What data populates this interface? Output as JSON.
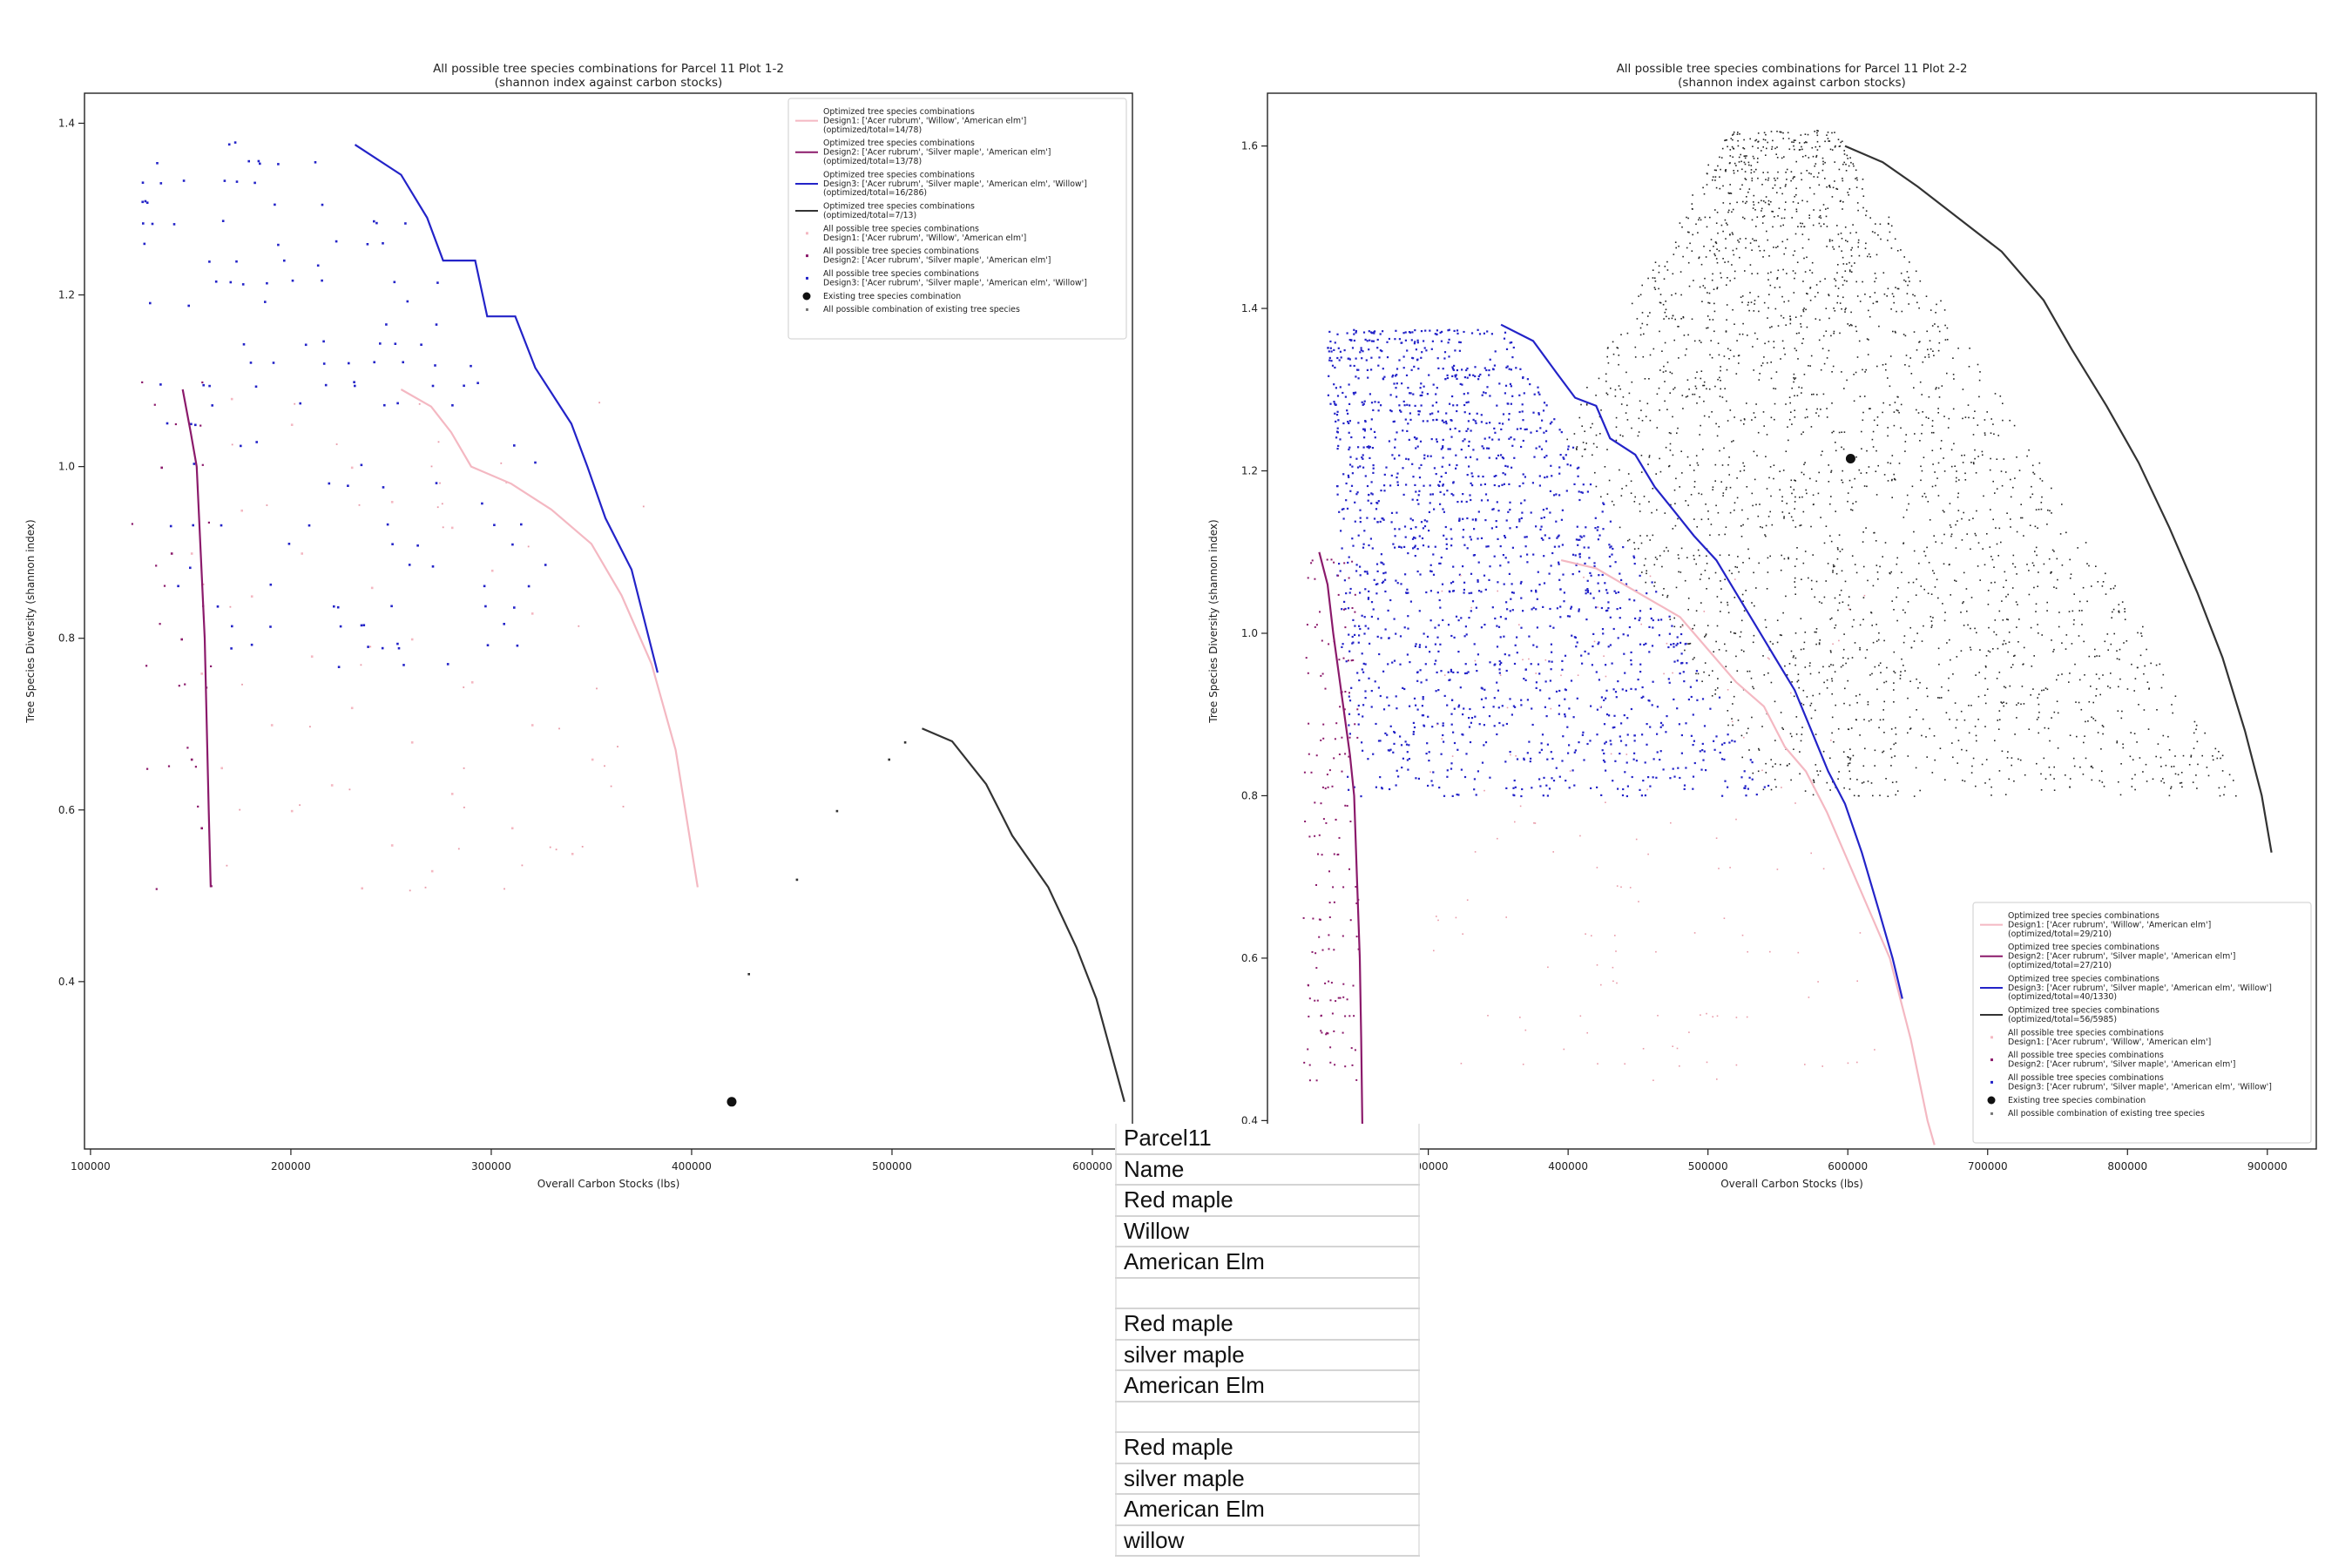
{
  "chart_data": [
    {
      "type": "scatter",
      "title": "All possible tree species combinations for Parcel 11 Plot 1-2",
      "subtitle": "(shannon index against carbon stocks)",
      "xlabel": "Overall Carbon Stocks (lbs)",
      "ylabel": "Tree Species Diversity (shannon index)",
      "xlim": [
        97000,
        620000
      ],
      "ylim": [
        0.205,
        1.435
      ],
      "xticks": [
        100000,
        200000,
        300000,
        400000,
        500000,
        600000
      ],
      "yticks": [
        0.4,
        0.6,
        0.8,
        1.0,
        1.2,
        1.4
      ],
      "xticklabels": [
        "100000",
        "200000",
        "300000",
        "400000",
        "500000",
        "600000"
      ],
      "yticklabels": [
        "0.4",
        "0.6",
        "0.8",
        "1.0",
        "1.2",
        "1.4"
      ],
      "legend_position": "top-right",
      "grid": false,
      "legend": [
        {
          "kind": "line",
          "color": "#f4b8c2",
          "lines": [
            "Optimized tree species combinations",
            "Design1: ['Acer rubrum', 'Willow', 'American elm']",
            "(optimized/total=14/78)"
          ]
        },
        {
          "kind": "line",
          "color": "#8b1a6b",
          "lines": [
            "Optimized tree species combinations",
            "Design2: ['Acer rubrum', 'Silver maple', 'American elm']",
            "(optimized/total=13/78)"
          ]
        },
        {
          "kind": "line",
          "color": "#2323c8",
          "lines": [
            "Optimized tree species combinations",
            "Design3: ['Acer rubrum', 'Silver maple', 'American elm', 'Willow']",
            "(optimized/total=16/286)"
          ]
        },
        {
          "kind": "line",
          "color": "#333333",
          "lines": [
            "Optimized tree species combinations",
            "(optimized/total=7/13)"
          ]
        },
        {
          "kind": "dot",
          "color": "#f4b8c2",
          "lines": [
            "All possible tree species combinations",
            "Design1: ['Acer rubrum', 'Willow', 'American elm']"
          ]
        },
        {
          "kind": "dot",
          "color": "#8b1a6b",
          "lines": [
            "All possible tree species combinations",
            "Design2: ['Acer rubrum', 'Silver maple', 'American elm']"
          ]
        },
        {
          "kind": "dot",
          "color": "#2323c8",
          "lines": [
            "All possible tree species combinations",
            "Design3: ['Acer rubrum', 'Silver maple', 'American elm', 'Willow']"
          ]
        },
        {
          "kind": "big",
          "color": "#111111",
          "lines": [
            "Existing tree species combination"
          ]
        },
        {
          "kind": "dot",
          "color": "#777777",
          "lines": [
            "All possible combination of existing tree species"
          ]
        }
      ],
      "series": [
        {
          "color": "#f4b8c2",
          "line": [
            [
              255000,
              1.09
            ],
            [
              270000,
              1.07
            ],
            [
              280000,
              1.04
            ],
            [
              290000,
              1.0
            ],
            [
              310000,
              0.98
            ],
            [
              330000,
              0.95
            ],
            [
              350000,
              0.91
            ],
            [
              365000,
              0.85
            ],
            [
              380000,
              0.77
            ],
            [
              392000,
              0.67
            ],
            [
              403000,
              0.51
            ]
          ],
          "points": [
            [
              170000,
              1.08
            ],
            [
              200000,
              1.05
            ],
            [
              230000,
              1.0
            ],
            [
              250000,
              0.96
            ],
            [
              280000,
              0.93
            ],
            [
              300000,
              0.88
            ],
            [
              320000,
              0.83
            ],
            [
              205000,
              0.9
            ],
            [
              240000,
              0.86
            ],
            [
              260000,
              0.8
            ],
            [
              290000,
              0.75
            ],
            [
              320000,
              0.7
            ],
            [
              350000,
              0.66
            ],
            [
              180000,
              0.85
            ],
            [
              210000,
              0.78
            ],
            [
              230000,
              0.72
            ],
            [
              260000,
              0.68
            ],
            [
              280000,
              0.62
            ],
            [
              310000,
              0.58
            ],
            [
              340000,
              0.55
            ],
            [
              190000,
              0.7
            ],
            [
              220000,
              0.63
            ],
            [
              250000,
              0.56
            ],
            [
              175000,
              0.95
            ],
            [
              150000,
              0.9
            ],
            [
              155000,
              0.76
            ],
            [
              165000,
              0.65
            ],
            [
              200000,
              0.6
            ],
            [
              235000,
              0.51
            ],
            [
              270000,
              0.53
            ]
          ]
        },
        {
          "color": "#8b1a6b",
          "line": [
            [
              146000,
              1.09
            ],
            [
              150000,
              1.04
            ],
            [
              153000,
              1.0
            ],
            [
              155000,
              0.9
            ],
            [
              157000,
              0.8
            ],
            [
              158000,
              0.7
            ],
            [
              159000,
              0.6
            ],
            [
              160000,
              0.51
            ]
          ],
          "points": [
            [
              135000,
              1.0
            ],
            [
              140000,
              0.9
            ],
            [
              145000,
              0.8
            ],
            [
              150000,
              0.66
            ],
            [
              155000,
              0.58
            ]
          ]
        },
        {
          "color": "#2323c8",
          "line": [
            [
              232000,
              1.375
            ],
            [
              255000,
              1.34
            ],
            [
              268000,
              1.29
            ],
            [
              276000,
              1.24
            ],
            [
              292000,
              1.24
            ],
            [
              298000,
              1.175
            ],
            [
              312000,
              1.175
            ],
            [
              322000,
              1.115
            ],
            [
              340000,
              1.05
            ],
            [
              348000,
              1.0
            ],
            [
              357000,
              0.94
            ],
            [
              370000,
              0.88
            ],
            [
              383000,
              0.76
            ]
          ],
          "points": []
        },
        {
          "color": "#333333",
          "line": [
            [
              515000,
              0.695
            ],
            [
              530000,
              0.68
            ],
            [
              547000,
              0.63
            ],
            [
              560000,
              0.57
            ],
            [
              578000,
              0.51
            ],
            [
              592000,
              0.44
            ],
            [
              602000,
              0.38
            ],
            [
              616000,
              0.26
            ]
          ],
          "points": [
            [
              428000,
              0.41
            ],
            [
              452000,
              0.52
            ],
            [
              472000,
              0.6
            ],
            [
              498000,
              0.66
            ],
            [
              506000,
              0.68
            ]
          ]
        }
      ],
      "existing_point": [
        420000,
        0.26
      ]
    },
    {
      "type": "scatter",
      "title": "All possible tree species combinations for Parcel 11 Plot 2-2",
      "subtitle": "(shannon index against carbon stocks)",
      "xlabel": "Overall Carbon Stocks (lbs)",
      "ylabel": "Tree Species Diversity (shannon index)",
      "xlim": [
        185000,
        935000
      ],
      "ylim": [
        0.365,
        1.665
      ],
      "xticks": [
        300000,
        400000,
        500000,
        600000,
        700000,
        800000,
        900000
      ],
      "yticks": [
        0.4,
        0.6,
        0.8,
        1.0,
        1.2,
        1.4,
        1.6
      ],
      "xticklabels": [
        "300000",
        "400000",
        "500000",
        "600000",
        "700000",
        "800000",
        "900000"
      ],
      "yticklabels": [
        "0.4",
        "0.6",
        "0.8",
        "1.0",
        "1.2",
        "1.4",
        "1.6"
      ],
      "legend_position": "bottom-right",
      "grid": false,
      "legend": [
        {
          "kind": "line",
          "color": "#f4b8c2",
          "lines": [
            "Optimized tree species combinations",
            "Design1: ['Acer rubrum', 'Willow', 'American elm']",
            "(optimized/total=29/210)"
          ]
        },
        {
          "kind": "line",
          "color": "#8b1a6b",
          "lines": [
            "Optimized tree species combinations",
            "Design2: ['Acer rubrum', 'Silver maple', 'American elm']",
            "(optimized/total=27/210)"
          ]
        },
        {
          "kind": "line",
          "color": "#2323c8",
          "lines": [
            "Optimized tree species combinations",
            "Design3: ['Acer rubrum', 'Silver maple', 'American elm', 'Willow']",
            "(optimized/total=40/1330)"
          ]
        },
        {
          "kind": "line",
          "color": "#333333",
          "lines": [
            "Optimized tree species combinations",
            "(optimized/total=56/5985)"
          ]
        },
        {
          "kind": "dot",
          "color": "#f4b8c2",
          "lines": [
            "All possible tree species combinations",
            "Design1: ['Acer rubrum', 'Willow', 'American elm']"
          ]
        },
        {
          "kind": "dot",
          "color": "#8b1a6b",
          "lines": [
            "All possible tree species combinations",
            "Design2: ['Acer rubrum', 'Silver maple', 'American elm']"
          ]
        },
        {
          "kind": "dot",
          "color": "#2323c8",
          "lines": [
            "All possible tree species combinations",
            "Design3: ['Acer rubrum', 'Silver maple', 'American elm', 'Willow']"
          ]
        },
        {
          "kind": "big",
          "color": "#111111",
          "lines": [
            "Existing tree species combination"
          ]
        },
        {
          "kind": "dot",
          "color": "#777777",
          "lines": [
            "All possible combination of existing tree species"
          ]
        }
      ],
      "series": [
        {
          "color": "#f4b8c2",
          "line": [
            [
              395000,
              1.09
            ],
            [
              420000,
              1.08
            ],
            [
              450000,
              1.05
            ],
            [
              480000,
              1.02
            ],
            [
              500000,
              0.98
            ],
            [
              520000,
              0.94
            ],
            [
              540000,
              0.91
            ],
            [
              555000,
              0.86
            ],
            [
              570000,
              0.83
            ],
            [
              585000,
              0.78
            ],
            [
              600000,
              0.72
            ],
            [
              615000,
              0.66
            ],
            [
              630000,
              0.6
            ],
            [
              645000,
              0.5
            ],
            [
              657000,
              0.4
            ],
            [
              662000,
              0.37
            ]
          ],
          "points": []
        },
        {
          "color": "#8b1a6b",
          "line": [
            [
              222000,
              1.1
            ],
            [
              228000,
              1.06
            ],
            [
              232000,
              1.0
            ],
            [
              236000,
              0.95
            ],
            [
              240000,
              0.9
            ],
            [
              244000,
              0.85
            ],
            [
              247000,
              0.8
            ],
            [
              249000,
              0.7
            ],
            [
              251000,
              0.6
            ],
            [
              252000,
              0.5
            ],
            [
              253000,
              0.37
            ]
          ],
          "points": []
        },
        {
          "color": "#2323c8",
          "line": [
            [
              352000,
              1.38
            ],
            [
              375000,
              1.36
            ],
            [
              392000,
              1.32
            ],
            [
              405000,
              1.29
            ],
            [
              420000,
              1.28
            ],
            [
              430000,
              1.24
            ],
            [
              448000,
              1.22
            ],
            [
              462000,
              1.18
            ],
            [
              476000,
              1.15
            ],
            [
              490000,
              1.12
            ],
            [
              506000,
              1.09
            ],
            [
              520000,
              1.05
            ],
            [
              534000,
              1.01
            ],
            [
              548000,
              0.97
            ],
            [
              562000,
              0.93
            ],
            [
              574000,
              0.88
            ],
            [
              586000,
              0.83
            ],
            [
              598000,
              0.79
            ],
            [
              610000,
              0.73
            ],
            [
              622000,
              0.66
            ],
            [
              632000,
              0.6
            ],
            [
              639000,
              0.55
            ]
          ],
          "points": []
        },
        {
          "color": "#333333",
          "line": [
            [
              598000,
              1.6
            ],
            [
              625000,
              1.58
            ],
            [
              650000,
              1.55
            ],
            [
              680000,
              1.51
            ],
            [
              710000,
              1.47
            ],
            [
              740000,
              1.41
            ],
            [
              760000,
              1.35
            ],
            [
              785000,
              1.28
            ],
            [
              808000,
              1.21
            ],
            [
              830000,
              1.13
            ],
            [
              850000,
              1.05
            ],
            [
              868000,
              0.97
            ],
            [
              884000,
              0.88
            ],
            [
              896000,
              0.8
            ],
            [
              903000,
              0.73
            ]
          ],
          "points": []
        }
      ],
      "existing_point": [
        602000,
        1.215
      ]
    }
  ],
  "side_table": {
    "rows": [
      "Parcel11",
      "Name",
      "Red maple",
      "Willow",
      "American Elm",
      "",
      "Red maple",
      "silver maple",
      "American Elm",
      "",
      "Red maple",
      "silver maple",
      "American Elm",
      "willow"
    ]
  }
}
